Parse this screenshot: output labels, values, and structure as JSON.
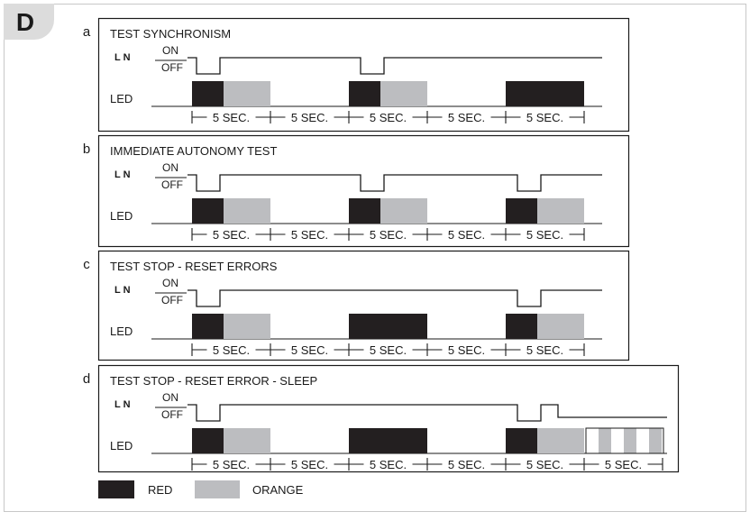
{
  "figure_label": "D",
  "colors": {
    "red": "#231f20",
    "orange": "#bcbdc0",
    "badge": "#dcdcdc"
  },
  "signal_labels": {
    "ln": "L N",
    "on": "ON",
    "off": "OFF",
    "led": "LED"
  },
  "interval_label": "5 SEC.",
  "legend": {
    "red_label": "RED",
    "orange_label": "ORANGE"
  },
  "panels": [
    {
      "letter": "a",
      "title": "TEST SYNCHRONISM",
      "pulses": [
        1,
        3
      ],
      "led": [
        [
          "red",
          "orange"
        ],
        [
          "red",
          "orange"
        ],
        [
          "red",
          "red"
        ]
      ],
      "intervals": 5
    },
    {
      "letter": "b",
      "title": "IMMEDIATE AUTONOMY TEST",
      "pulses": [
        1,
        3,
        5
      ],
      "led": [
        [
          "red",
          "orange"
        ],
        [
          "red",
          "orange"
        ],
        [
          "red",
          "orange"
        ]
      ],
      "intervals": 5
    },
    {
      "letter": "c",
      "title": "TEST STOP - RESET ERRORS",
      "pulses": [
        1,
        5
      ],
      "led": [
        [
          "red",
          "orange"
        ],
        [
          "red",
          "red"
        ],
        [
          "red",
          "orange"
        ]
      ],
      "intervals": 5
    },
    {
      "letter": "d",
      "title": "TEST STOP - RESET ERROR - SLEEP",
      "pulses": [
        1,
        5,
        6
      ],
      "led": [
        [
          "red",
          "orange"
        ],
        [
          "red",
          "red"
        ],
        [
          "red",
          "orange"
        ]
      ],
      "sleep_block": "striped",
      "intervals": 6
    }
  ]
}
